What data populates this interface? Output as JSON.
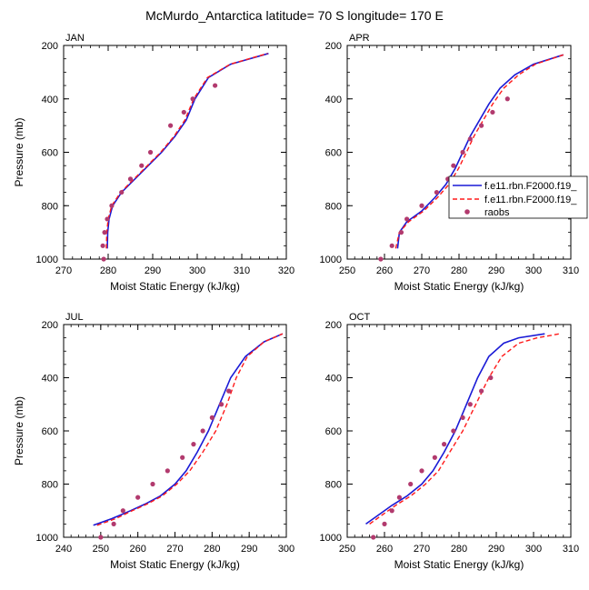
{
  "title": "McMurdo_Antarctica  latitude= 70 S longitude= 170 E",
  "colors": {
    "model1": "#1a1ad6",
    "model2": "#ff1a1a",
    "obs": "#b23a6e",
    "legend_border": "#000000"
  },
  "legend": {
    "entries": [
      {
        "label": "f.e11.rbn.F2000.f19_",
        "style": "solid",
        "color": "#1a1ad6"
      },
      {
        "label": "f.e11.rbn.F2000.f19_",
        "style": "dashed",
        "color": "#ff1a1a"
      },
      {
        "label": "raobs",
        "style": "marker",
        "color": "#b23a6e"
      }
    ]
  },
  "chart_data": [
    {
      "type": "line",
      "panel": "JAN",
      "xlabel": "Moist Static Energy (kJ/kg)",
      "ylabel": "Pressure (mb)",
      "xlim": [
        270,
        320
      ],
      "ylim": [
        1000,
        200
      ],
      "y_reversed": true,
      "xticks": [
        270,
        280,
        290,
        300,
        310,
        320
      ],
      "yticks": [
        200,
        400,
        600,
        800,
        1000
      ],
      "series": [
        {
          "key": "model1",
          "style": "solid",
          "color": "#1a1ad6",
          "x": [
            279.8,
            279.9,
            280.2,
            281.0,
            283.0,
            286.0,
            289.0,
            292.0,
            295.0,
            297.5,
            299.5,
            302.5,
            307.5,
            316.0
          ],
          "y": [
            960,
            900,
            850,
            800,
            750,
            700,
            650,
            600,
            540,
            480,
            400,
            320,
            270,
            230
          ]
        },
        {
          "key": "model2",
          "style": "dashed",
          "color": "#ff1a1a",
          "x": [
            279.6,
            279.7,
            280.0,
            280.8,
            282.8,
            285.8,
            288.8,
            291.8,
            294.8,
            297.2,
            299.2,
            302.3,
            307.4,
            315.8
          ],
          "y": [
            960,
            900,
            850,
            800,
            750,
            700,
            650,
            600,
            540,
            480,
            400,
            320,
            270,
            230
          ]
        },
        {
          "key": "obs",
          "style": "marker",
          "color": "#b23a6e",
          "x": [
            279.0,
            278.8,
            279.2,
            279.8,
            280.8,
            283.0,
            285.0,
            287.5,
            289.5,
            294.0,
            297.0,
            299.0,
            304.0
          ],
          "y": [
            1000,
            950,
            900,
            850,
            800,
            750,
            700,
            650,
            600,
            500,
            450,
            400,
            350
          ]
        }
      ]
    },
    {
      "type": "line",
      "panel": "APR",
      "xlabel": "Moist Static Energy (kJ/kg)",
      "ylabel": "",
      "xlim": [
        250,
        310
      ],
      "ylim": [
        1000,
        200
      ],
      "y_reversed": true,
      "xticks": [
        250,
        260,
        270,
        280,
        290,
        300,
        310
      ],
      "yticks": [
        200,
        400,
        600,
        800,
        1000
      ],
      "series": [
        {
          "key": "model1",
          "style": "solid",
          "color": "#1a1ad6",
          "x": [
            263.5,
            264.0,
            266.0,
            270.0,
            273.5,
            276.5,
            279.0,
            281.0,
            283.0,
            285.5,
            288.0,
            291.0,
            295.0,
            300.0,
            308.0
          ],
          "y": [
            960,
            900,
            860,
            820,
            770,
            720,
            660,
            600,
            540,
            480,
            420,
            360,
            310,
            270,
            235
          ]
        },
        {
          "key": "model2",
          "style": "dashed",
          "color": "#ff1a1a",
          "x": [
            263.0,
            264.0,
            266.5,
            270.5,
            274.2,
            277.3,
            279.9,
            282.0,
            284.0,
            286.5,
            289.0,
            292.0,
            296.0,
            300.5,
            308.0
          ],
          "y": [
            960,
            900,
            860,
            820,
            770,
            720,
            660,
            600,
            540,
            480,
            420,
            360,
            310,
            270,
            235
          ]
        },
        {
          "key": "obs",
          "style": "marker",
          "color": "#b23a6e",
          "x": [
            259.0,
            262.0,
            264.5,
            266.0,
            270.0,
            274.0,
            277.0,
            278.5,
            281.0,
            283.0,
            286.0,
            289.0,
            293.0
          ],
          "y": [
            1000,
            950,
            900,
            850,
            800,
            750,
            700,
            650,
            600,
            550,
            500,
            450,
            400
          ]
        }
      ]
    },
    {
      "type": "line",
      "panel": "JUL",
      "xlabel": "Moist Static Energy (kJ/kg)",
      "ylabel": "Pressure (mb)",
      "xlim": [
        240,
        300
      ],
      "ylim": [
        1000,
        200
      ],
      "y_reversed": true,
      "xticks": [
        240,
        250,
        260,
        270,
        280,
        290,
        300
      ],
      "yticks": [
        200,
        400,
        600,
        800,
        1000
      ],
      "series": [
        {
          "key": "model1",
          "style": "solid",
          "color": "#1a1ad6",
          "x": [
            248.0,
            253.0,
            258.0,
            262.0,
            266.0,
            270.0,
            273.0,
            276.0,
            279.0,
            282.0,
            285.0,
            289.0,
            294.0,
            299.0
          ],
          "y": [
            955,
            930,
            900,
            875,
            845,
            800,
            750,
            680,
            600,
            500,
            400,
            320,
            265,
            235
          ]
        },
        {
          "key": "model2",
          "style": "dashed",
          "color": "#ff1a1a",
          "x": [
            249.0,
            254.0,
            258.5,
            262.5,
            266.5,
            270.5,
            274.0,
            277.5,
            281.0,
            284.0,
            286.5,
            289.5,
            294.0,
            299.0
          ],
          "y": [
            955,
            930,
            900,
            875,
            845,
            800,
            750,
            680,
            600,
            500,
            400,
            320,
            265,
            235
          ]
        },
        {
          "key": "obs",
          "style": "marker",
          "color": "#b23a6e",
          "x": [
            250.0,
            253.5,
            256.0,
            260.0,
            264.0,
            268.0,
            272.0,
            275.0,
            277.5,
            280.0,
            282.5,
            284.5
          ],
          "y": [
            1000,
            950,
            900,
            850,
            800,
            750,
            700,
            650,
            600,
            550,
            500,
            450
          ]
        }
      ]
    },
    {
      "type": "line",
      "panel": "OCT",
      "xlabel": "Moist Static Energy (kJ/kg)",
      "ylabel": "",
      "xlim": [
        250,
        310
      ],
      "ylim": [
        1000,
        200
      ],
      "y_reversed": true,
      "xticks": [
        250,
        260,
        270,
        280,
        290,
        300,
        310
      ],
      "yticks": [
        200,
        400,
        600,
        800,
        1000
      ],
      "series": [
        {
          "key": "model1",
          "style": "solid",
          "color": "#1a1ad6",
          "x": [
            255.0,
            258.0,
            262.0,
            266.0,
            270.0,
            273.0,
            276.0,
            279.0,
            282.0,
            285.0,
            288.0,
            292.0,
            296.0,
            303.0
          ],
          "y": [
            950,
            920,
            880,
            845,
            800,
            750,
            680,
            600,
            500,
            400,
            320,
            270,
            250,
            235
          ]
        },
        {
          "key": "model2",
          "style": "dashed",
          "color": "#ff1a1a",
          "x": [
            256.0,
            259.0,
            263.0,
            267.0,
            271.0,
            274.5,
            277.5,
            281.0,
            284.5,
            288.0,
            291.5,
            296.0,
            301.0,
            307.0
          ],
          "y": [
            950,
            920,
            880,
            845,
            800,
            750,
            680,
            600,
            500,
            400,
            320,
            270,
            250,
            235
          ]
        },
        {
          "key": "obs",
          "style": "marker",
          "color": "#b23a6e",
          "x": [
            257.0,
            260.0,
            262.0,
            264.0,
            267.0,
            270.0,
            273.5,
            276.0,
            278.5,
            281.0,
            283.0,
            286.0,
            288.5
          ],
          "y": [
            1000,
            950,
            900,
            850,
            800,
            750,
            700,
            650,
            600,
            550,
            500,
            450,
            400
          ]
        }
      ]
    }
  ]
}
